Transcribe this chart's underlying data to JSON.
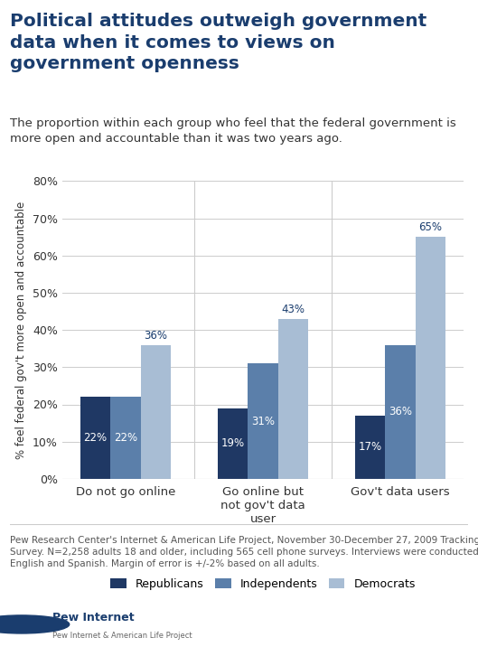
{
  "title": "Political attitudes outweigh government\ndata when it comes to views on\ngovernment openness",
  "subtitle": "The proportion within each group who feel that the federal government is\nmore open and accountable than it was two years ago.",
  "categories": [
    "Do not go online",
    "Go online but\nnot gov't data\nuser",
    "Gov't data users"
  ],
  "series": {
    "Republicans": [
      22,
      19,
      17
    ],
    "Independents": [
      22,
      31,
      36
    ],
    "Democrats": [
      36,
      43,
      65
    ]
  },
  "colors": {
    "Republicans": "#1f3864",
    "Independents": "#5b7faa",
    "Democrats": "#a8bdd4"
  },
  "ylabel": "% feel federal gov't more open and accountable",
  "ylim": [
    0,
    80
  ],
  "yticks": [
    0,
    10,
    20,
    30,
    40,
    50,
    60,
    70,
    80
  ],
  "bar_width": 0.22,
  "footnote": "Pew Research Center's Internet & American Life Project, November 30-December 27, 2009 Tracking\nSurvey. N=2,258 adults 18 and older, including 565 cell phone surveys. Interviews were conducted in\nEnglish and Spanish. Margin of error is +/-2% based on all adults.",
  "background_color": "#ffffff",
  "title_color": "#1a3d6e",
  "subtitle_color": "#333333",
  "footnote_color": "#555555"
}
